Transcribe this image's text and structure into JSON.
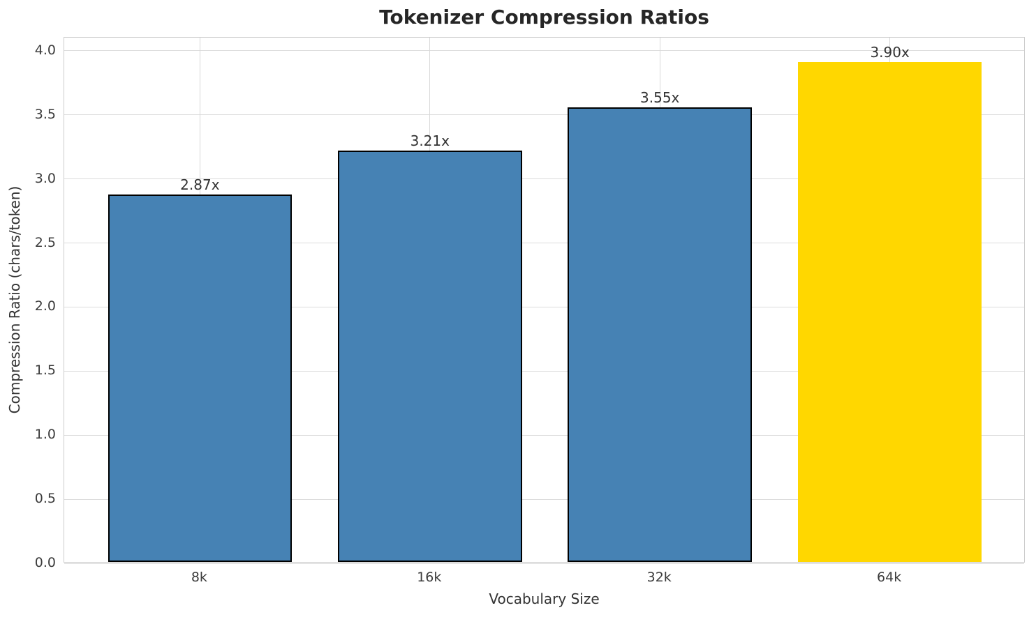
{
  "chart_data": {
    "type": "bar",
    "title": "Tokenizer Compression Ratios",
    "xlabel": "Vocabulary Size",
    "ylabel": "Compression Ratio (chars/token)",
    "categories": [
      "8k",
      "16k",
      "32k",
      "64k"
    ],
    "values": [
      2.87,
      3.21,
      3.55,
      3.9
    ],
    "bar_labels": [
      "2.87x",
      "3.21x",
      "3.55x",
      "3.90x"
    ],
    "bar_colors": [
      "#4682b4",
      "#4682b4",
      "#4682b4",
      "#ffd700"
    ],
    "bar_edge_colors": [
      "#000000",
      "#000000",
      "#000000",
      "none"
    ],
    "highlight_color": "#ffd700",
    "base_color": "#4682b4",
    "bar_width": 0.8,
    "xlim": [
      -0.59,
      3.59
    ],
    "ylim": [
      0,
      4.103
    ],
    "yticks": [
      0.0,
      0.5,
      1.0,
      1.5,
      2.0,
      2.5,
      3.0,
      3.5,
      4.0
    ],
    "ytick_labels": [
      "0.0",
      "0.5",
      "1.0",
      "1.5",
      "2.0",
      "2.5",
      "3.0",
      "3.5",
      "4.0"
    ],
    "grid": true,
    "grid_color": "#dcdcdc",
    "legend": null
  }
}
